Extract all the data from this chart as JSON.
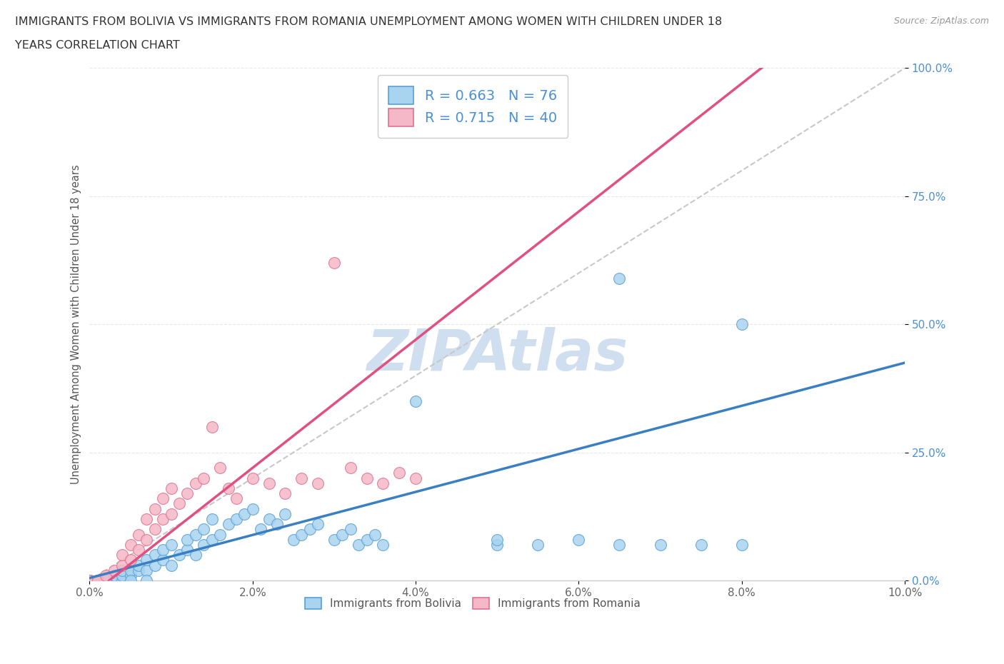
{
  "title_line1": "IMMIGRANTS FROM BOLIVIA VS IMMIGRANTS FROM ROMANIA UNEMPLOYMENT AMONG WOMEN WITH CHILDREN UNDER 18",
  "title_line2": "YEARS CORRELATION CHART",
  "source": "Source: ZipAtlas.com",
  "ylabel": "Unemployment Among Women with Children Under 18 years",
  "xlim": [
    0.0,
    0.1
  ],
  "ylim": [
    0.0,
    1.0
  ],
  "xticks": [
    0.0,
    0.02,
    0.04,
    0.06,
    0.08,
    0.1
  ],
  "yticks": [
    0.0,
    0.25,
    0.5,
    0.75,
    1.0
  ],
  "bolivia_color": "#a8d4f0",
  "bolivia_edge_color": "#5a9fd4",
  "romania_color": "#f5b8c8",
  "romania_edge_color": "#e07090",
  "bolivia_line_color": "#3a7fc1",
  "romania_line_color": "#e05080",
  "ref_line_color": "#c8c8c8",
  "watermark": "ZIPAtlas",
  "watermark_color": "#d0dff0",
  "grid_color": "#e8e8e8",
  "background_color": "#ffffff",
  "ytick_color": "#4a90d9",
  "xtick_color": "#666666",
  "bolivia_R": 0.663,
  "bolivia_N": 76,
  "romania_R": 0.715,
  "romania_N": 40,
  "bolivia_line_intercept": 0.005,
  "bolivia_line_slope": 4.2,
  "romania_line_intercept": -0.03,
  "romania_line_slope": 12.5,
  "bolivia_points": [
    [
      0.0,
      0.0
    ],
    [
      0.0,
      0.0
    ],
    [
      0.0,
      0.0
    ],
    [
      0.0,
      0.0
    ],
    [
      0.0,
      0.0
    ],
    [
      0.0,
      0.0
    ],
    [
      0.0,
      0.0
    ],
    [
      0.0,
      0.0
    ],
    [
      0.0,
      0.0
    ],
    [
      0.0,
      0.0
    ],
    [
      0.001,
      0.0
    ],
    [
      0.001,
      0.0
    ],
    [
      0.001,
      0.0
    ],
    [
      0.002,
      0.0
    ],
    [
      0.002,
      0.0
    ],
    [
      0.002,
      0.0
    ],
    [
      0.003,
      0.0
    ],
    [
      0.003,
      0.0
    ],
    [
      0.003,
      0.01
    ],
    [
      0.004,
      0.0
    ],
    [
      0.004,
      0.01
    ],
    [
      0.004,
      0.02
    ],
    [
      0.005,
      0.01
    ],
    [
      0.005,
      0.02
    ],
    [
      0.005,
      0.0
    ],
    [
      0.006,
      0.02
    ],
    [
      0.006,
      0.03
    ],
    [
      0.007,
      0.02
    ],
    [
      0.007,
      0.04
    ],
    [
      0.007,
      0.0
    ],
    [
      0.008,
      0.03
    ],
    [
      0.008,
      0.05
    ],
    [
      0.009,
      0.04
    ],
    [
      0.009,
      0.06
    ],
    [
      0.01,
      0.03
    ],
    [
      0.01,
      0.07
    ],
    [
      0.011,
      0.05
    ],
    [
      0.012,
      0.06
    ],
    [
      0.012,
      0.08
    ],
    [
      0.013,
      0.05
    ],
    [
      0.013,
      0.09
    ],
    [
      0.014,
      0.07
    ],
    [
      0.014,
      0.1
    ],
    [
      0.015,
      0.08
    ],
    [
      0.015,
      0.12
    ],
    [
      0.016,
      0.09
    ],
    [
      0.017,
      0.11
    ],
    [
      0.018,
      0.12
    ],
    [
      0.019,
      0.13
    ],
    [
      0.02,
      0.14
    ],
    [
      0.021,
      0.1
    ],
    [
      0.022,
      0.12
    ],
    [
      0.023,
      0.11
    ],
    [
      0.024,
      0.13
    ],
    [
      0.025,
      0.08
    ],
    [
      0.026,
      0.09
    ],
    [
      0.027,
      0.1
    ],
    [
      0.028,
      0.11
    ],
    [
      0.03,
      0.08
    ],
    [
      0.031,
      0.09
    ],
    [
      0.032,
      0.1
    ],
    [
      0.033,
      0.07
    ],
    [
      0.034,
      0.08
    ],
    [
      0.035,
      0.09
    ],
    [
      0.036,
      0.07
    ],
    [
      0.04,
      0.35
    ],
    [
      0.05,
      0.07
    ],
    [
      0.05,
      0.08
    ],
    [
      0.055,
      0.07
    ],
    [
      0.06,
      0.08
    ],
    [
      0.065,
      0.59
    ],
    [
      0.065,
      0.07
    ],
    [
      0.07,
      0.07
    ],
    [
      0.075,
      0.07
    ],
    [
      0.08,
      0.5
    ],
    [
      0.08,
      0.07
    ]
  ],
  "romania_points": [
    [
      0.0,
      0.0
    ],
    [
      0.0,
      0.0
    ],
    [
      0.0,
      0.0
    ],
    [
      0.001,
      0.0
    ],
    [
      0.001,
      0.0
    ],
    [
      0.002,
      0.01
    ],
    [
      0.003,
      0.02
    ],
    [
      0.004,
      0.03
    ],
    [
      0.004,
      0.05
    ],
    [
      0.005,
      0.04
    ],
    [
      0.005,
      0.07
    ],
    [
      0.006,
      0.06
    ],
    [
      0.006,
      0.09
    ],
    [
      0.007,
      0.08
    ],
    [
      0.007,
      0.12
    ],
    [
      0.008,
      0.1
    ],
    [
      0.008,
      0.14
    ],
    [
      0.009,
      0.12
    ],
    [
      0.009,
      0.16
    ],
    [
      0.01,
      0.13
    ],
    [
      0.01,
      0.18
    ],
    [
      0.011,
      0.15
    ],
    [
      0.012,
      0.17
    ],
    [
      0.013,
      0.19
    ],
    [
      0.014,
      0.2
    ],
    [
      0.015,
      0.3
    ],
    [
      0.016,
      0.22
    ],
    [
      0.017,
      0.18
    ],
    [
      0.018,
      0.16
    ],
    [
      0.02,
      0.2
    ],
    [
      0.022,
      0.19
    ],
    [
      0.024,
      0.17
    ],
    [
      0.026,
      0.2
    ],
    [
      0.028,
      0.19
    ],
    [
      0.03,
      0.62
    ],
    [
      0.032,
      0.22
    ],
    [
      0.034,
      0.2
    ],
    [
      0.036,
      0.19
    ],
    [
      0.038,
      0.21
    ],
    [
      0.04,
      0.2
    ]
  ]
}
